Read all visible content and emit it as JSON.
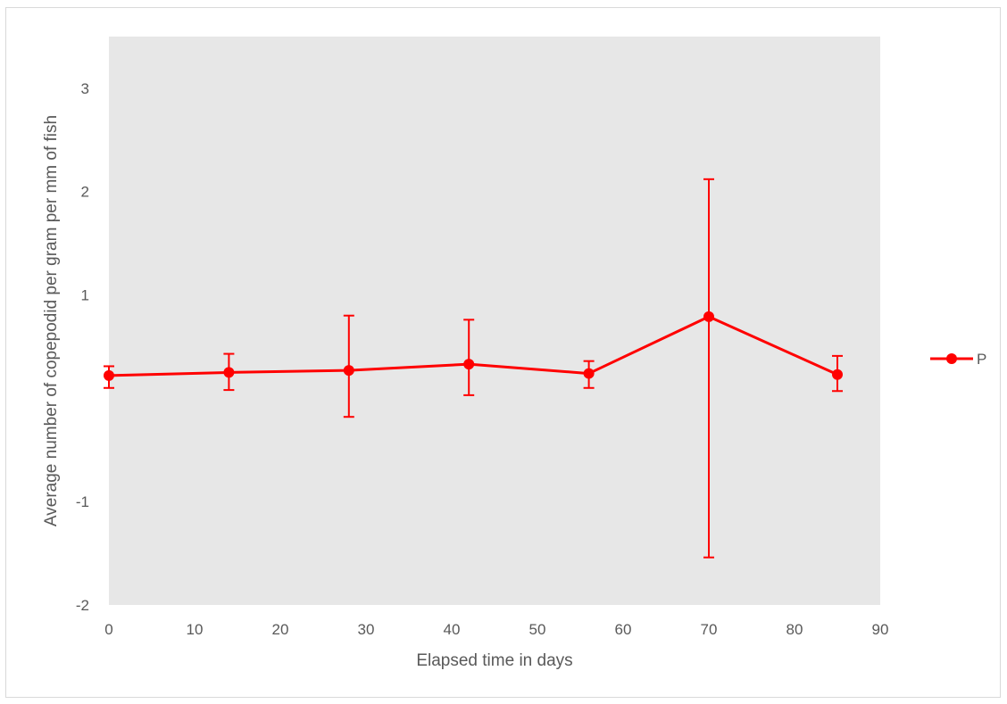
{
  "chart_data": {
    "type": "line",
    "title": "",
    "xlabel": "Elapsed time in days",
    "ylabel": "Average number of copepodid per gram per mm of fish",
    "xlim": [
      0,
      90
    ],
    "ylim": [
      -2,
      3.5
    ],
    "x_ticks": [
      0,
      10,
      20,
      30,
      40,
      50,
      60,
      70,
      80,
      90
    ],
    "y_ticks": [
      -2,
      -1,
      1,
      2,
      3
    ],
    "grid": false,
    "plot_background": "#e7e7e7",
    "legend_position": "right",
    "series": [
      {
        "name": "P",
        "color": "#ff0000",
        "marker": "circle",
        "x": [
          0,
          14,
          28,
          42,
          56,
          70,
          85
        ],
        "y": [
          0.22,
          0.25,
          0.27,
          0.33,
          0.24,
          0.79,
          0.23
        ],
        "error_low": [
          0.12,
          0.17,
          0.45,
          0.3,
          0.14,
          2.33,
          0.16
        ],
        "error_high": [
          0.09,
          0.18,
          0.53,
          0.43,
          0.12,
          1.33,
          0.18
        ]
      }
    ]
  }
}
